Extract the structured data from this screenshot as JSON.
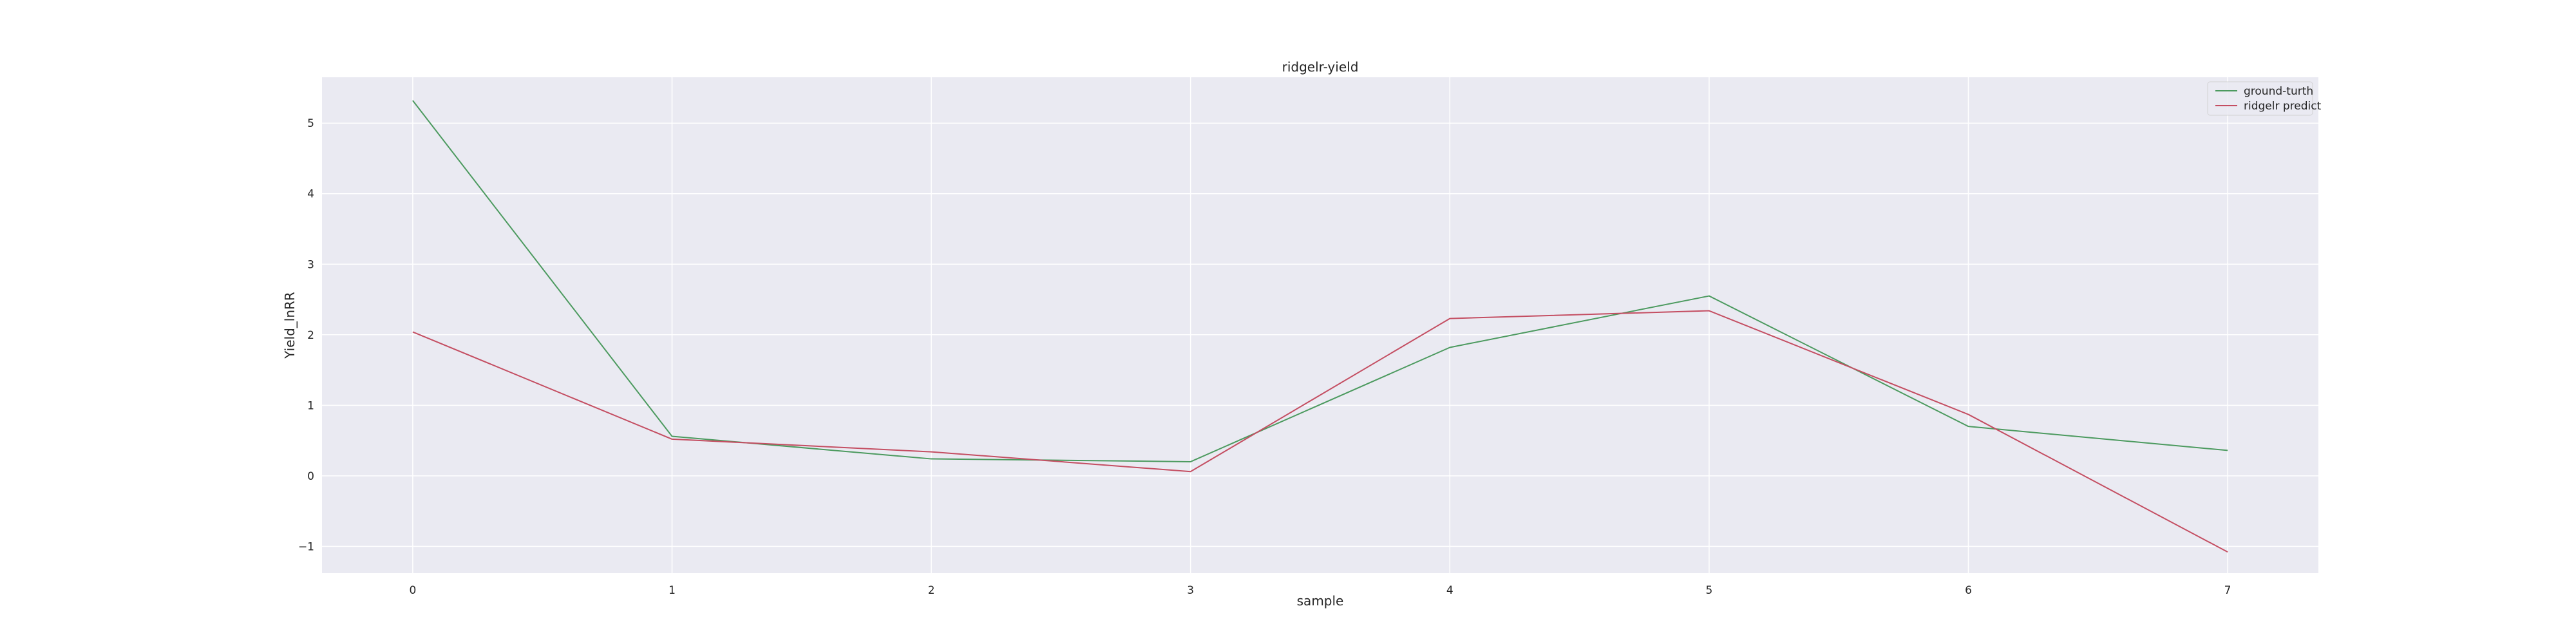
{
  "chart_data": {
    "type": "line",
    "title": "ridgelr-yield",
    "xlabel": "sample",
    "ylabel": "Yield_lnRR",
    "x": [
      0,
      1,
      2,
      3,
      4,
      5,
      6,
      7
    ],
    "xlim": [
      -0.35,
      7.35
    ],
    "ylim": [
      -1.38,
      5.65
    ],
    "xticks": [
      0,
      1,
      2,
      3,
      4,
      5,
      6,
      7
    ],
    "yticks": [
      -1,
      0,
      1,
      2,
      3,
      4,
      5
    ],
    "ytick_labels": [
      "−1",
      "0",
      "1",
      "2",
      "3",
      "4",
      "5"
    ],
    "grid": true,
    "legend_position": "top-right",
    "series": [
      {
        "name": "ground-turth",
        "color": "#4c9a5f",
        "values": [
          5.32,
          0.56,
          0.24,
          0.2,
          1.82,
          2.55,
          0.7,
          0.36
        ]
      },
      {
        "name": "ridgelr predict",
        "color": "#c44e62",
        "values": [
          2.04,
          0.52,
          0.34,
          0.06,
          2.23,
          2.34,
          0.87,
          -1.08
        ]
      }
    ],
    "colors": {
      "plot_background": "#eaeaf2",
      "grid": "#ffffff"
    }
  }
}
